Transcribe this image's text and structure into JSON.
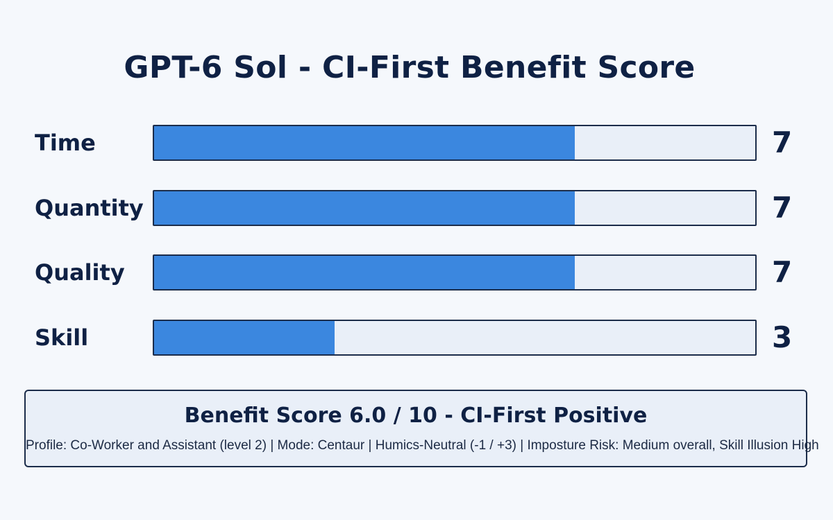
{
  "title": "GPT-6 Sol - CI-First Benefit Score",
  "colors": {
    "bar_fill": "#3b87df",
    "bar_track": "#e9eff8",
    "border": "#1b2c4a",
    "text": "#0f2144",
    "background": "#f5f8fc"
  },
  "chart_data": {
    "type": "bar",
    "orientation": "horizontal",
    "title": "GPT-6 Sol - CI-First Benefit Score",
    "categories": [
      "Time",
      "Quantity",
      "Quality",
      "Skill"
    ],
    "values": [
      7,
      7,
      7,
      3
    ],
    "xlim": [
      0,
      10
    ]
  },
  "bars": [
    {
      "label": "Time",
      "value": "7"
    },
    {
      "label": "Quantity",
      "value": "7"
    },
    {
      "label": "Quality",
      "value": "7"
    },
    {
      "label": "Skill",
      "value": "3"
    }
  ],
  "summary": {
    "heading": "Benefit Score 6.0 / 10 - CI-First Positive",
    "detail": "Profile: Co-Worker and Assistant (level 2) | Mode: Centaur | Humics-Neutral (-1 / +3) | Imposture Risk: Medium overall, Skill Illusion High"
  }
}
